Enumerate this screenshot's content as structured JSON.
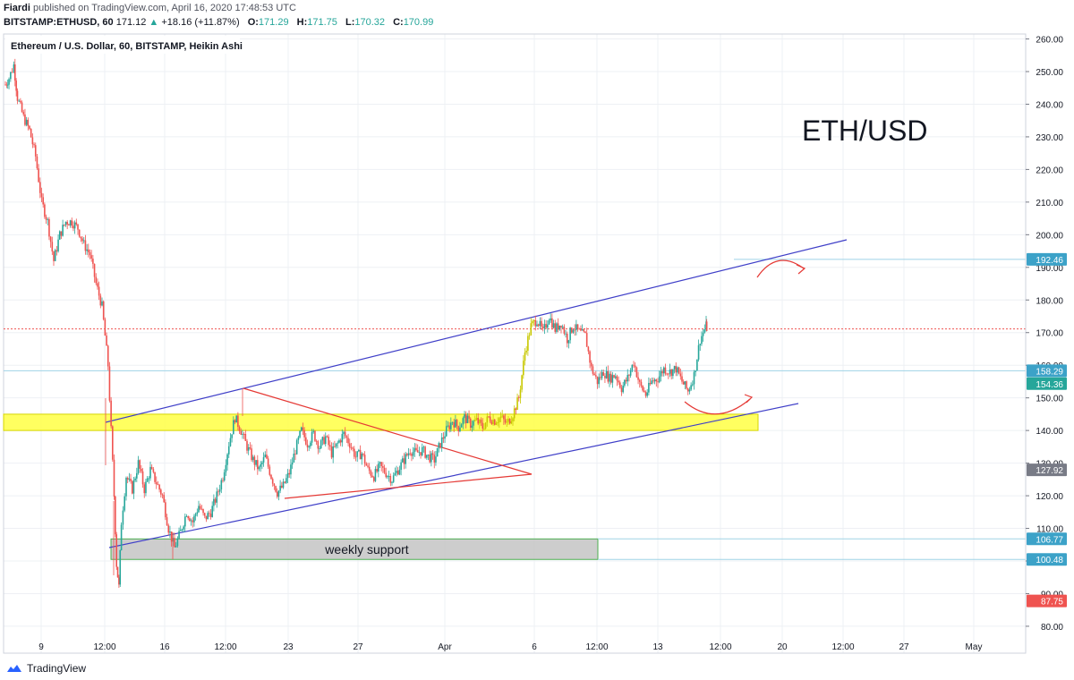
{
  "header": {
    "author": "Fiardi",
    "published_text": "published on TradingView.com, April 16, 2020 17:48:53 UTC",
    "symbol": "BITSTAMP:ETHUSD, 60",
    "last": "171.12",
    "change": "+18.16 (+11.87%)",
    "o_label": "O:",
    "o": "171.29",
    "h_label": "H:",
    "h": "171.75",
    "l_label": "L:",
    "l": "170.32",
    "c_label": "C:",
    "c": "170.99"
  },
  "footer": {
    "brand": "TradingView"
  },
  "chart_data": {
    "type": "candlestick",
    "title": "Ethereum / U.S. Dollar, 60, BITSTAMP, Heikin Ashi",
    "annotation": "ETH/USD",
    "ylim": [
      80,
      260
    ],
    "y_ticks": [
      80,
      90,
      100,
      110,
      120,
      130,
      140,
      150,
      160,
      170,
      180,
      190,
      200,
      210,
      220,
      230,
      240,
      250,
      260
    ],
    "y_tick_labels": [
      "80.00",
      "90.00",
      "100.00",
      "110.00",
      "120.00",
      "130.00",
      "140.00",
      "150.00",
      "160.00",
      "170.00",
      "180.00",
      "190.00",
      "200.00",
      "210.00",
      "220.00",
      "230.00",
      "240.00",
      "250.00",
      "260.00"
    ],
    "x_tick_labels": [
      "9",
      "12:00",
      "16",
      "12:00",
      "23",
      "27",
      "Apr",
      "6",
      "12:00",
      "13",
      "12:00",
      "20",
      "12:00",
      "27",
      "May"
    ],
    "grid": true,
    "price_labels": [
      {
        "value": 192.46,
        "text": "192.46",
        "color": "#3ca2c8"
      },
      {
        "value": 158.29,
        "text": "158.29",
        "color": "#3ca2c8"
      },
      {
        "value": 154.36,
        "text": "154.36",
        "color": "#26a69a"
      },
      {
        "value": 127.92,
        "text": "127.92",
        "color": "#787b86"
      },
      {
        "value": 106.77,
        "text": "106.77",
        "color": "#3ca2c8"
      },
      {
        "value": 100.48,
        "text": "100.48",
        "color": "#3ca2c8"
      },
      {
        "value": 87.75,
        "text": "87.75",
        "color": "#ef5350"
      }
    ],
    "current_price": 171.12,
    "support_box_label": "weekly support",
    "series_path": [
      [
        0,
        246
      ],
      [
        0.3,
        248
      ],
      [
        0.7,
        252
      ],
      [
        1.0,
        242
      ],
      [
        1.5,
        236
      ],
      [
        2.0,
        232
      ],
      [
        2.5,
        224
      ],
      [
        3.0,
        210
      ],
      [
        3.5,
        204
      ],
      [
        4.0,
        192
      ],
      [
        4.5,
        200
      ],
      [
        5.0,
        204
      ],
      [
        5.5,
        204
      ],
      [
        6.0,
        202
      ],
      [
        6.5,
        197
      ],
      [
        7.0,
        194
      ],
      [
        7.5,
        185
      ],
      [
        8.0,
        178
      ],
      [
        8.5,
        160
      ],
      [
        9.0,
        120
      ],
      [
        9.2,
        99
      ],
      [
        9.4,
        92
      ],
      [
        9.6,
        112
      ],
      [
        10.0,
        126
      ],
      [
        10.5,
        122
      ],
      [
        11.0,
        130
      ],
      [
        11.5,
        122
      ],
      [
        12.0,
        128
      ],
      [
        12.5,
        124
      ],
      [
        13.0,
        120
      ],
      [
        13.5,
        110
      ],
      [
        14.0,
        104
      ],
      [
        14.5,
        109
      ],
      [
        15.0,
        115
      ],
      [
        15.5,
        112
      ],
      [
        16.0,
        117
      ],
      [
        16.5,
        113
      ],
      [
        17.0,
        115
      ],
      [
        17.5,
        120
      ],
      [
        18.0,
        126
      ],
      [
        18.5,
        136
      ],
      [
        19.0,
        144
      ],
      [
        19.5,
        140
      ],
      [
        20.0,
        135
      ],
      [
        20.5,
        131
      ],
      [
        21.0,
        128
      ],
      [
        21.5,
        132
      ],
      [
        22.0,
        126
      ],
      [
        22.5,
        121
      ],
      [
        23.0,
        123
      ],
      [
        23.5,
        127
      ],
      [
        24.0,
        134
      ],
      [
        24.5,
        140
      ],
      [
        25.0,
        136
      ],
      [
        25.5,
        139
      ],
      [
        26.0,
        135
      ],
      [
        26.5,
        138
      ],
      [
        27.0,
        133
      ],
      [
        27.5,
        136
      ],
      [
        28.0,
        139
      ],
      [
        28.5,
        136
      ],
      [
        29.0,
        132
      ],
      [
        29.5,
        133
      ],
      [
        30.0,
        128
      ],
      [
        30.5,
        126
      ],
      [
        31.0,
        129
      ],
      [
        31.5,
        127
      ],
      [
        32.0,
        125
      ],
      [
        32.5,
        128
      ],
      [
        33.0,
        131
      ],
      [
        33.5,
        134
      ],
      [
        34.0,
        133
      ],
      [
        34.5,
        134
      ],
      [
        35.0,
        132
      ],
      [
        35.5,
        131
      ],
      [
        36.0,
        136
      ],
      [
        36.5,
        140
      ],
      [
        37.0,
        143
      ],
      [
        37.5,
        141
      ],
      [
        38.0,
        144
      ],
      [
        38.5,
        142
      ],
      [
        39.0,
        143
      ],
      [
        39.5,
        141
      ],
      [
        40.0,
        144
      ],
      [
        40.5,
        143
      ],
      [
        41.0,
        144
      ],
      [
        41.5,
        142
      ],
      [
        42.0,
        145
      ],
      [
        42.5,
        150
      ],
      [
        43.0,
        164
      ],
      [
        43.5,
        172
      ],
      [
        44.0,
        174
      ],
      [
        44.5,
        170
      ],
      [
        45.0,
        175
      ],
      [
        45.5,
        171
      ],
      [
        46.0,
        173
      ],
      [
        46.5,
        168
      ],
      [
        47.0,
        172
      ],
      [
        47.5,
        170
      ],
      [
        48.0,
        169
      ],
      [
        48.5,
        159
      ],
      [
        49.0,
        155
      ],
      [
        49.5,
        158
      ],
      [
        50.0,
        156
      ],
      [
        50.5,
        157
      ],
      [
        51.0,
        153
      ],
      [
        51.5,
        156
      ],
      [
        52.0,
        161
      ],
      [
        52.5,
        154
      ],
      [
        53.0,
        151
      ],
      [
        53.5,
        155
      ],
      [
        54.0,
        156
      ],
      [
        54.5,
        159
      ],
      [
        55.0,
        158
      ],
      [
        55.5,
        159
      ],
      [
        56.0,
        155
      ],
      [
        56.5,
        152
      ],
      [
        57.0,
        157
      ],
      [
        57.5,
        168
      ],
      [
        58.0,
        172
      ],
      [
        58.1,
        171
      ]
    ],
    "x_domain": [
      0,
      84
    ]
  }
}
